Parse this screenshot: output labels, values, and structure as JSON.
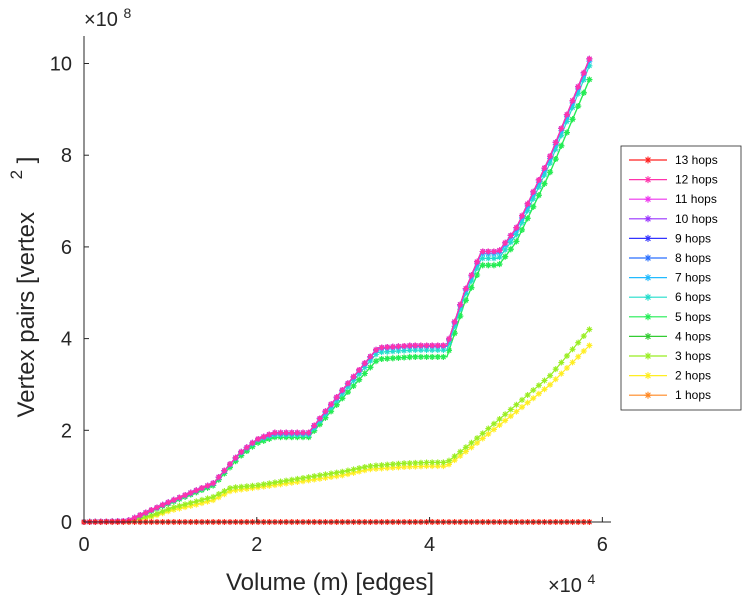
{
  "chart_data": {
    "type": "line",
    "title": "",
    "xlabel": "Volume (m) [edges]",
    "ylabel": "Vertex pairs [vertex",
    "ylabel_superscript": "2",
    "ylabel_close": "]",
    "x_multiplier": {
      "base": "×10",
      "exp": "4"
    },
    "y_multiplier": {
      "base": "×10",
      "exp": "8"
    },
    "xlim": [
      0,
      61000
    ],
    "ylim": [
      0,
      10.6
    ],
    "x_ticks": [
      0,
      20000,
      40000,
      60000
    ],
    "x_tick_labels": [
      "0",
      "2",
      "4",
      "6"
    ],
    "y_ticks": [
      0,
      2,
      4,
      6,
      8,
      10
    ],
    "y_tick_labels": [
      "0",
      "2",
      "4",
      "6",
      "8",
      "10"
    ],
    "legend_position": "right",
    "series": [
      {
        "name": "13 hops",
        "color": "#ff2020",
        "x": [
          0,
          58500
        ],
        "y": [
          0,
          0
        ]
      },
      {
        "name": "12 hops",
        "color": "#ff33aa",
        "x": [
          0,
          5000,
          10000,
          15000,
          18000,
          20000,
          22000,
          26000,
          30000,
          34000,
          38000,
          42000,
          44000,
          46000,
          48000,
          50000,
          54000,
          58500
        ],
        "y": [
          0,
          0.02,
          0.45,
          0.85,
          1.5,
          1.8,
          1.95,
          1.95,
          2.9,
          3.8,
          3.85,
          3.85,
          5.0,
          5.9,
          5.9,
          6.4,
          8.0,
          10.1
        ]
      },
      {
        "name": "11 hops",
        "color": "#ee33ee",
        "x": [
          0,
          5000,
          10000,
          15000,
          18000,
          20000,
          22000,
          26000,
          30000,
          34000,
          38000,
          42000,
          44000,
          46000,
          48000,
          50000,
          54000,
          58500
        ],
        "y": [
          0,
          0.02,
          0.45,
          0.85,
          1.5,
          1.8,
          1.95,
          1.95,
          2.9,
          3.8,
          3.85,
          3.85,
          5.0,
          5.9,
          5.9,
          6.4,
          8.0,
          10.1
        ]
      },
      {
        "name": "10 hops",
        "color": "#9933ff",
        "x": [
          0,
          5000,
          10000,
          15000,
          18000,
          20000,
          22000,
          26000,
          30000,
          34000,
          38000,
          42000,
          44000,
          46000,
          48000,
          50000,
          54000,
          58500
        ],
        "y": [
          0,
          0.02,
          0.45,
          0.85,
          1.5,
          1.8,
          1.95,
          1.95,
          2.9,
          3.8,
          3.85,
          3.85,
          5.0,
          5.9,
          5.9,
          6.4,
          8.0,
          10.1
        ]
      },
      {
        "name": "9 hops",
        "color": "#3333ff",
        "x": [
          0,
          5000,
          10000,
          15000,
          18000,
          20000,
          22000,
          26000,
          30000,
          34000,
          38000,
          42000,
          44000,
          46000,
          48000,
          50000,
          54000,
          58500
        ],
        "y": [
          0,
          0.02,
          0.45,
          0.85,
          1.5,
          1.8,
          1.95,
          1.95,
          2.9,
          3.8,
          3.85,
          3.85,
          5.0,
          5.9,
          5.9,
          6.4,
          8.0,
          10.1
        ]
      },
      {
        "name": "8 hops",
        "color": "#2a6fff",
        "x": [
          0,
          5000,
          10000,
          15000,
          18000,
          20000,
          22000,
          26000,
          30000,
          34000,
          38000,
          42000,
          44000,
          46000,
          48000,
          50000,
          54000,
          58500
        ],
        "y": [
          0,
          0.02,
          0.45,
          0.85,
          1.5,
          1.8,
          1.95,
          1.95,
          2.9,
          3.8,
          3.85,
          3.85,
          5.0,
          5.9,
          5.9,
          6.4,
          8.0,
          10.1
        ]
      },
      {
        "name": "7 hops",
        "color": "#22bbff",
        "x": [
          0,
          5000,
          10000,
          15000,
          18000,
          20000,
          22000,
          26000,
          30000,
          34000,
          38000,
          42000,
          44000,
          46000,
          48000,
          50000,
          54000,
          58500
        ],
        "y": [
          0,
          0.02,
          0.45,
          0.85,
          1.5,
          1.8,
          1.93,
          1.93,
          2.88,
          3.78,
          3.83,
          3.83,
          4.97,
          5.85,
          5.85,
          6.35,
          7.95,
          10.05
        ]
      },
      {
        "name": "6 hops",
        "color": "#22ddcc",
        "x": [
          0,
          5000,
          10000,
          15000,
          18000,
          20000,
          22000,
          26000,
          30000,
          34000,
          38000,
          42000,
          44000,
          46000,
          48000,
          50000,
          54000,
          58500
        ],
        "y": [
          0,
          0.02,
          0.44,
          0.84,
          1.48,
          1.78,
          1.9,
          1.9,
          2.82,
          3.7,
          3.75,
          3.75,
          4.9,
          5.75,
          5.75,
          6.25,
          7.85,
          9.95
        ]
      },
      {
        "name": "5 hops",
        "color": "#22ee55",
        "x": [
          0,
          5000,
          10000,
          15000,
          18000,
          20000,
          22000,
          26000,
          30000,
          34000,
          38000,
          42000,
          44000,
          46000,
          48000,
          50000,
          54000,
          58500
        ],
        "y": [
          0,
          0.02,
          0.42,
          0.8,
          1.42,
          1.72,
          1.85,
          1.85,
          2.72,
          3.55,
          3.6,
          3.6,
          4.75,
          5.6,
          5.6,
          6.1,
          7.65,
          9.65
        ]
      },
      {
        "name": "4 hops",
        "color": "#33cc33",
        "x": [
          0,
          5000,
          10000,
          15000,
          18000,
          20000,
          22000,
          26000,
          30000,
          34000,
          38000,
          42000,
          44000,
          46000,
          48000,
          50000,
          54000,
          58500
        ],
        "y": [
          0,
          0.02,
          0.42,
          0.8,
          1.42,
          1.72,
          1.85,
          1.85,
          2.72,
          3.55,
          3.6,
          3.6,
          4.75,
          5.6,
          5.6,
          6.1,
          7.65,
          9.65
        ]
      },
      {
        "name": "3 hops",
        "color": "#99ee22",
        "x": [
          0,
          5000,
          8000,
          10000,
          13000,
          15000,
          17000,
          20000,
          25000,
          30000,
          33000,
          37000,
          40000,
          42000,
          45000,
          50000,
          54000,
          58500
        ],
        "y": [
          0,
          0.01,
          0.15,
          0.3,
          0.45,
          0.55,
          0.75,
          0.8,
          0.95,
          1.1,
          1.22,
          1.28,
          1.3,
          1.3,
          1.75,
          2.55,
          3.2,
          4.2
        ]
      },
      {
        "name": "2 hops",
        "color": "#ffee22",
        "x": [
          0,
          5000,
          8000,
          10000,
          13000,
          15000,
          17000,
          20000,
          25000,
          30000,
          33000,
          37000,
          40000,
          42000,
          45000,
          50000,
          54000,
          58500
        ],
        "y": [
          0,
          0.01,
          0.12,
          0.25,
          0.38,
          0.48,
          0.68,
          0.75,
          0.88,
          1.02,
          1.15,
          1.2,
          1.22,
          1.22,
          1.65,
          2.4,
          3.0,
          3.85
        ]
      },
      {
        "name": "1 hops",
        "color": "#ff8822",
        "x": [
          0,
          58500
        ],
        "y": [
          0,
          0
        ]
      }
    ]
  }
}
